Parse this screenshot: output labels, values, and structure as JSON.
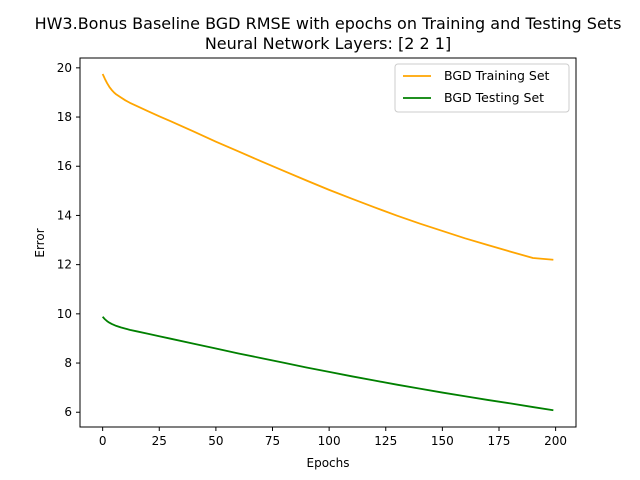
{
  "chart_data": {
    "type": "line",
    "title": "HW3.Bonus Baseline BGD RMSE with epochs on Training and Testing Sets",
    "subtitle": "Neural Network Layers: [2 2 1]",
    "xlabel": "Epochs",
    "ylabel": "Error",
    "xlim": [
      -10,
      209
    ],
    "ylim": [
      5.4,
      20.4
    ],
    "x_ticks": [
      0,
      25,
      50,
      75,
      100,
      125,
      150,
      175,
      200
    ],
    "y_ticks": [
      6,
      8,
      10,
      12,
      14,
      16,
      18,
      20
    ],
    "grid": false,
    "legend_position": "top-right",
    "x": [
      0,
      1,
      2,
      3,
      4,
      5,
      6,
      8,
      10,
      12,
      15,
      20,
      25,
      30,
      40,
      50,
      60,
      70,
      80,
      90,
      100,
      110,
      120,
      130,
      140,
      150,
      160,
      170,
      180,
      190,
      199
    ],
    "series": [
      {
        "name": "BGD Training Set",
        "color": "#ffa500",
        "values": [
          19.75,
          19.55,
          19.37,
          19.22,
          19.1,
          19.0,
          18.92,
          18.8,
          18.68,
          18.58,
          18.45,
          18.24,
          18.03,
          17.83,
          17.42,
          17.0,
          16.6,
          16.2,
          15.81,
          15.42,
          15.04,
          14.68,
          14.33,
          13.99,
          13.67,
          13.37,
          13.07,
          12.8,
          12.53,
          12.27,
          12.2
        ]
      },
      {
        "name": "BGD Testing Set",
        "color": "#008000",
        "values": [
          9.88,
          9.78,
          9.7,
          9.64,
          9.59,
          9.55,
          9.51,
          9.45,
          9.4,
          9.35,
          9.29,
          9.19,
          9.09,
          8.99,
          8.79,
          8.59,
          8.39,
          8.2,
          8.01,
          7.82,
          7.64,
          7.46,
          7.29,
          7.12,
          6.96,
          6.8,
          6.65,
          6.5,
          6.36,
          6.21,
          6.08
        ]
      }
    ]
  }
}
